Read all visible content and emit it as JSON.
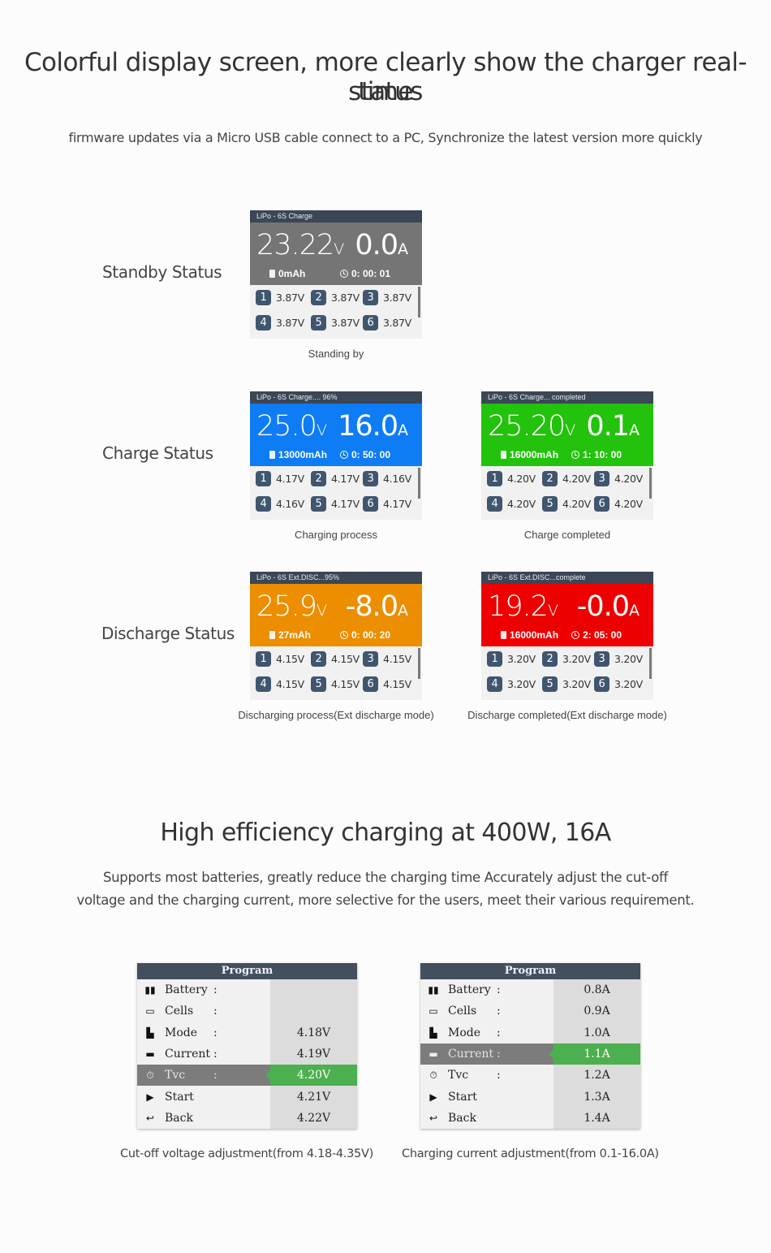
{
  "section1": {
    "title_line1": "Colorful display screen, more clearly show the charger real-time",
    "title_line2": "status",
    "subtitle": "firmware updates via a Micro USB cable connect to a PC, Synchronize the latest version more quickly"
  },
  "status_labels": {
    "standby": "Standby Status",
    "charge": "Charge Status",
    "discharge": "Discharge Status"
  },
  "screens": [
    {
      "header": "LiPo - 6S Charge",
      "bg_color": "#757575",
      "voltage": "23.22",
      "voltage_unit": "V",
      "current": "0.0",
      "current_unit": "A",
      "capacity": "0mAh",
      "time": "0: 00: 01",
      "cells": [
        "3.87V",
        "3.87V",
        "3.87V",
        "3.87V",
        "3.87V",
        "3.87V"
      ],
      "caption": "Standing by"
    },
    {
      "header": "LiPo - 6S  Charge.... 96%",
      "bg_color": "#0e7cf5",
      "voltage": "25.0",
      "voltage_unit": "V",
      "current": "16.0",
      "current_unit": "A",
      "capacity": "13000mAh",
      "time": "0: 50: 00",
      "cells": [
        "4.17V",
        "4.17V",
        "4.16V",
        "4.16V",
        "4.17V",
        "4.17V"
      ],
      "caption": "Charging process"
    },
    {
      "header": "LiPo - 6S  Charge... completed",
      "bg_color": "#23c20c",
      "voltage": "25.20",
      "voltage_unit": "V",
      "current": "0.1",
      "current_unit": "A",
      "capacity": "16000mAh",
      "time": "1: 10: 00",
      "cells": [
        "4.20V",
        "4.20V",
        "4.20V",
        "4.20V",
        "4.20V",
        "4.20V"
      ],
      "caption": "Charge completed"
    },
    {
      "header": "LiPo - 6S Ext.DISC...95%",
      "bg_color": "#ed8d00",
      "voltage": "25.9",
      "voltage_unit": "V",
      "current": "-8.0",
      "current_unit": "A",
      "capacity": "27mAh",
      "time": "0: 00: 20",
      "cells": [
        "4.15V",
        "4.15V",
        "4.15V",
        "4.15V",
        "4.15V",
        "4.15V"
      ],
      "caption": "Discharging process(Ext discharge mode)"
    },
    {
      "header": "LiPo - 6S Ext.DISC...complete",
      "bg_color": "#ee0000",
      "voltage": "19.2",
      "voltage_unit": "V",
      "current": "-0.0",
      "current_unit": "A",
      "capacity": "16000mAh",
      "time": "2: 05: 00",
      "cells": [
        "3.20V",
        "3.20V",
        "3.20V",
        "3.20V",
        "3.20V",
        "3.20V"
      ],
      "caption": "Discharge completed(Ext discharge mode)"
    }
  ],
  "cell_numbers": [
    "1",
    "2",
    "3",
    "4",
    "5",
    "6"
  ],
  "section2": {
    "title": "High efficiency charging at 400W, 16A",
    "desc_line1": "Supports most batteries, greatly reduce the charging time Accurately adjust the cut-off",
    "desc_line2": "voltage and the charging current, more selective for the users, meet their various requirement."
  },
  "programs": [
    {
      "title": "Program",
      "selected_index": 4,
      "rows": [
        {
          "icon": "battery-icon",
          "label": "Battery",
          "colon": ":",
          "value": ""
        },
        {
          "icon": "cells-icon",
          "label": "Cells",
          "colon": ":",
          "value": ""
        },
        {
          "icon": "mode-icon",
          "label": "Mode",
          "colon": ":",
          "value": "4.18V"
        },
        {
          "icon": "current-icon",
          "label": "Current",
          "colon": ":",
          "value": "4.19V"
        },
        {
          "icon": "timer-icon",
          "label": "Tvc",
          "colon": ":",
          "value": "4.20V"
        },
        {
          "icon": "play-icon",
          "label": "Start",
          "colon": "",
          "value": "4.21V"
        },
        {
          "icon": "back-icon",
          "label": "Back",
          "colon": "",
          "value": "4.22V"
        }
      ],
      "caption": "Cut-off voltage adjustment(from 4.18-4.35V)"
    },
    {
      "title": "Program",
      "selected_index": 3,
      "rows": [
        {
          "icon": "battery-icon",
          "label": "Battery",
          "colon": ":",
          "value": "0.8A"
        },
        {
          "icon": "cells-icon",
          "label": "Cells",
          "colon": ":",
          "value": "0.9A"
        },
        {
          "icon": "mode-icon",
          "label": "Mode",
          "colon": ":",
          "value": "1.0A"
        },
        {
          "icon": "current-icon",
          "label": "Current",
          "colon": ":",
          "value": "1.1A"
        },
        {
          "icon": "timer-icon",
          "label": "Tvc",
          "colon": ":",
          "value": "1.2A"
        },
        {
          "icon": "play-icon",
          "label": "Start",
          "colon": "",
          "value": "1.3A"
        },
        {
          "icon": "back-icon",
          "label": "Back",
          "colon": "",
          "value": "1.4A"
        }
      ],
      "caption": "Charging current adjustment(from 0.1-16.0A)"
    }
  ]
}
